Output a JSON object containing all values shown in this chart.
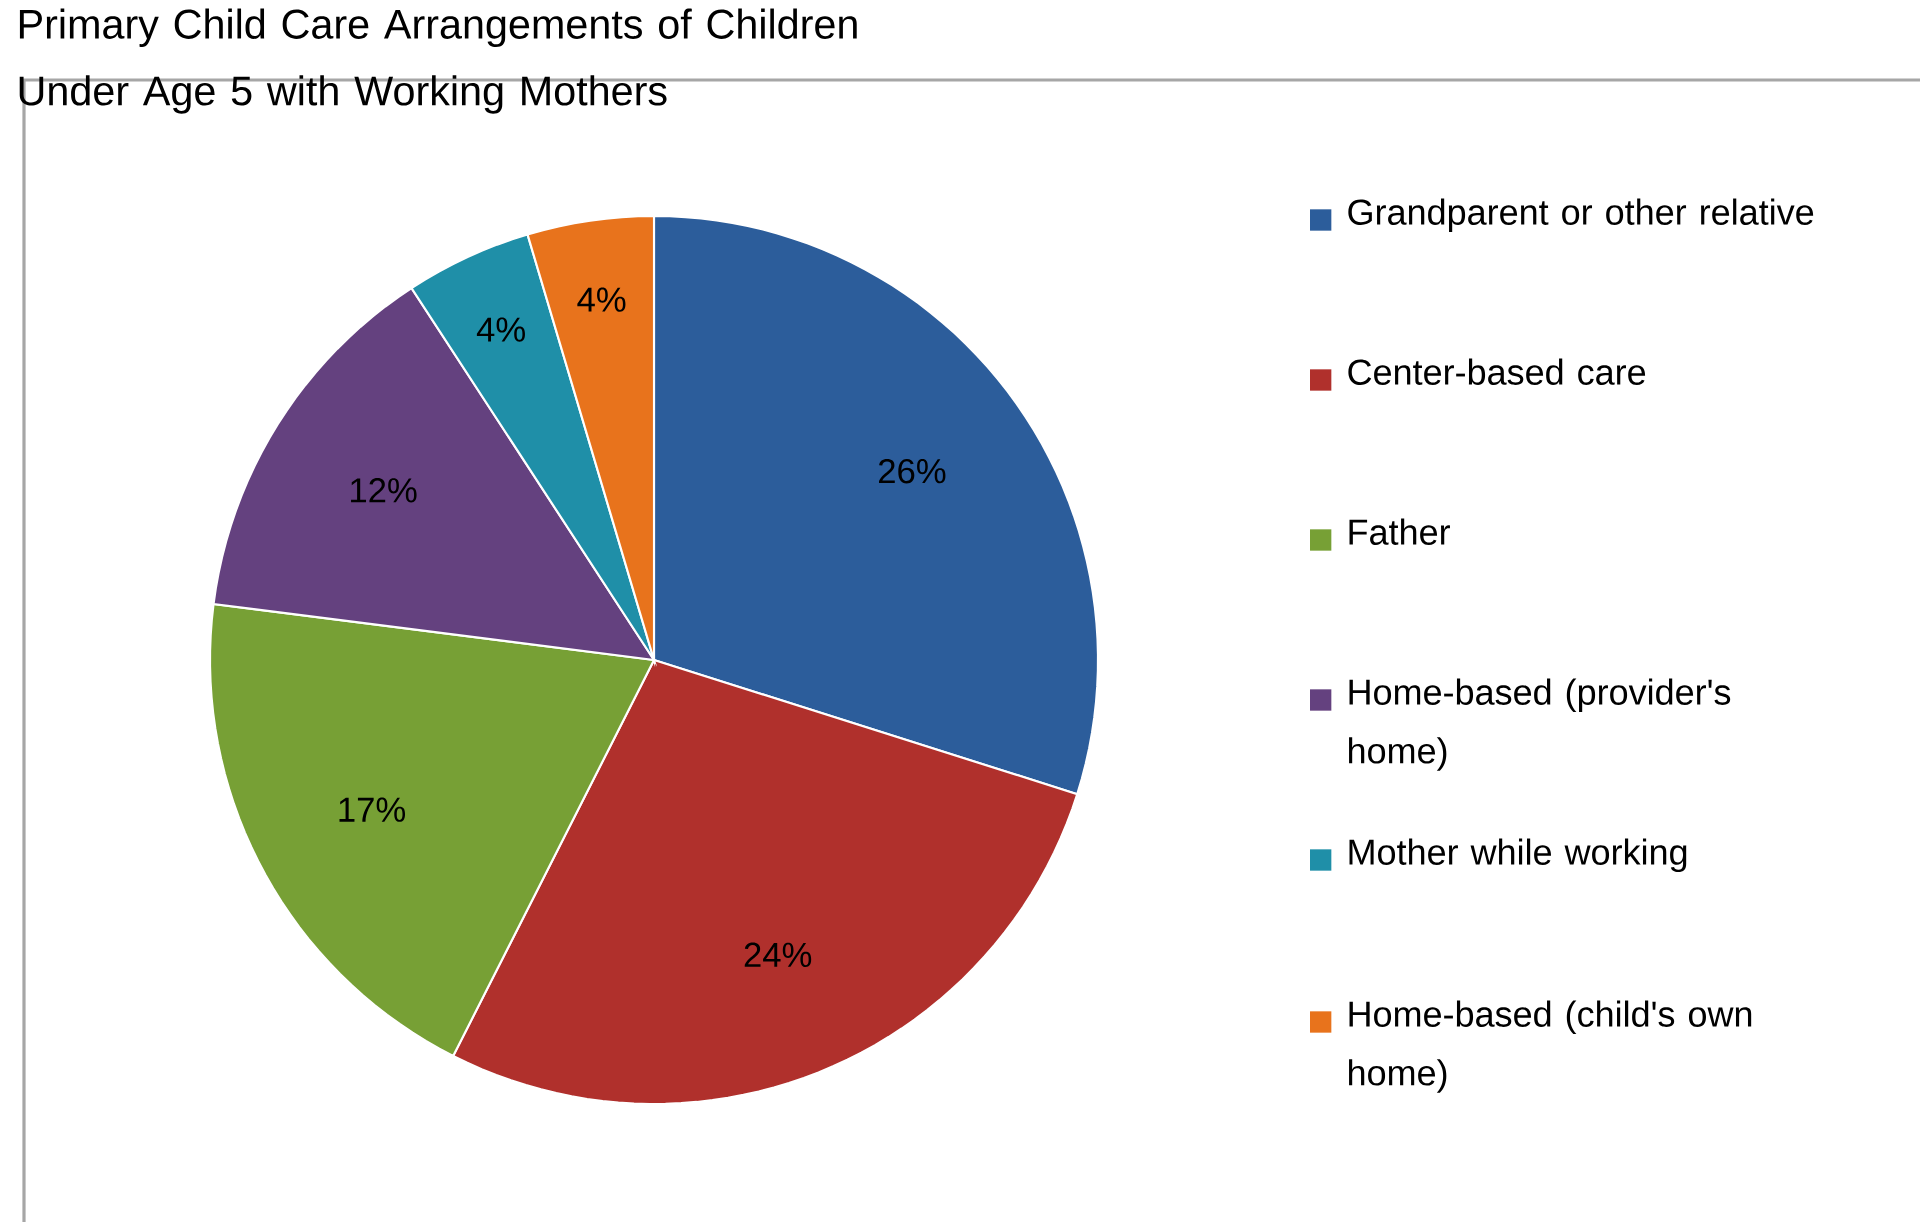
{
  "chart_data": {
    "type": "pie",
    "title": "Primary Child Care Arrangements of Children Under Age 5 with Working Mothers",
    "categories": [
      "Grandparent or other relative",
      "Center-based care",
      "Father",
      "Home-based (provider's home)",
      "Mother while working",
      "Home-based (child's own home)"
    ],
    "values": [
      26,
      24,
      17,
      12,
      4,
      4
    ],
    "value_labels": [
      "26%",
      "24%",
      "17%",
      "12%",
      "4%",
      "4%"
    ],
    "colors": [
      "#2c5d9b",
      "#b0302c",
      "#77a035",
      "#64417f",
      "#1f8fa8",
      "#e8731c"
    ],
    "legend": "right"
  }
}
